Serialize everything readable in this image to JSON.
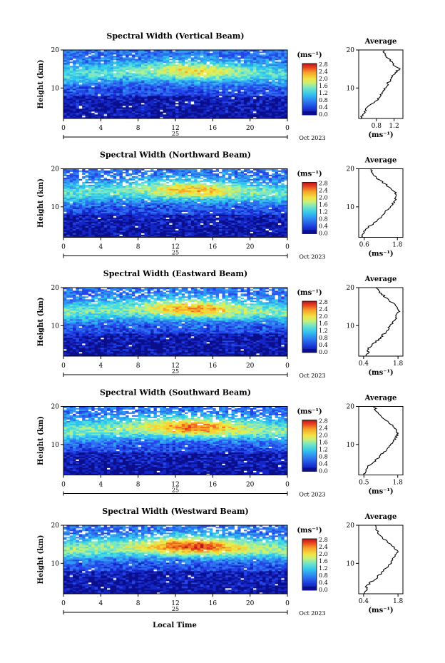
{
  "figure": {
    "xlabel": "Local Time",
    "date_label": "Oct 2023",
    "day_label": "25",
    "ylabel": "Height (km)",
    "units": "(ms⁻¹)",
    "average_title": "Average",
    "average_xunit": "(ms⁻¹)",
    "x_ticks": [
      "0",
      "4",
      "8",
      "12",
      "16",
      "20",
      "0"
    ],
    "y_ticks": [
      "20",
      "10"
    ],
    "colorbar_ticks": [
      "2.8",
      "2.4",
      "2.0",
      "1.6",
      "1.2",
      "0.8",
      "0.4",
      "0.0"
    ],
    "colorbar_colors": [
      "#0b0f8c",
      "#1426c7",
      "#2346e8",
      "#2d6ff0",
      "#2f9af2",
      "#31c1ef",
      "#46dbe0",
      "#7fe8c2",
      "#b4ef8a",
      "#e2ef52",
      "#f7d434",
      "#f7a52a",
      "#f06a22",
      "#e0321c",
      "#b8141a"
    ]
  },
  "chart_data": [
    {
      "type": "heatmap",
      "title": "Spectral Width (Vertical Beam)",
      "xlabel": "Local Time",
      "ylabel": "Height (km)",
      "xlim": [
        0,
        24
      ],
      "ylim": [
        2,
        20
      ],
      "clim": [
        0.0,
        3.0
      ],
      "colorbar_label": "(ms⁻¹)",
      "average_profile": {
        "title": "Average",
        "xlabel": "(ms⁻¹)",
        "xlim": [
          0.4,
          1.4
        ],
        "xticks": [
          "0.8",
          "1.2"
        ],
        "xtick_values": [
          0.8,
          1.2
        ],
        "height": [
          2,
          3,
          4,
          5,
          6,
          7,
          8,
          9,
          10,
          11,
          12,
          13,
          14,
          15,
          16,
          17,
          18,
          19,
          20
        ],
        "width": [
          0.45,
          0.5,
          0.55,
          0.6,
          0.72,
          0.82,
          0.9,
          0.95,
          1.0,
          1.05,
          1.1,
          1.15,
          1.22,
          1.32,
          1.2,
          1.12,
          1.05,
          1.0,
          0.95
        ]
      }
    },
    {
      "type": "heatmap",
      "title": "Spectral Width (Northward Beam)",
      "xlabel": "Local Time",
      "ylabel": "Height (km)",
      "xlim": [
        0,
        24
      ],
      "ylim": [
        2,
        20
      ],
      "clim": [
        0.0,
        3.0
      ],
      "colorbar_label": "(ms⁻¹)",
      "average_profile": {
        "title": "Average",
        "xlabel": "(ms⁻¹)",
        "xlim": [
          0.4,
          2.0
        ],
        "xticks": [
          "0.6",
          "1.8"
        ],
        "xtick_values": [
          0.6,
          1.8
        ],
        "height": [
          2,
          3,
          4,
          5,
          6,
          7,
          8,
          9,
          10,
          11,
          12,
          13,
          14,
          15,
          16,
          17,
          18,
          19,
          20
        ],
        "width": [
          0.5,
          0.55,
          0.65,
          0.8,
          1.0,
          1.15,
          1.3,
          1.42,
          1.55,
          1.65,
          1.72,
          1.78,
          1.7,
          1.55,
          1.35,
          1.15,
          1.0,
          0.9,
          0.85
        ]
      }
    },
    {
      "type": "heatmap",
      "title": "Spectral Width (Eastward Beam)",
      "xlabel": "Local Time",
      "ylabel": "Height (km)",
      "xlim": [
        0,
        24
      ],
      "ylim": [
        2,
        20
      ],
      "clim": [
        0.0,
        3.0
      ],
      "colorbar_label": "(ms⁻¹)",
      "average_profile": {
        "title": "Average",
        "xlabel": "(ms⁻¹)",
        "xlim": [
          0.2,
          2.0
        ],
        "xticks": [
          "0.4",
          "1.8"
        ],
        "xtick_values": [
          0.4,
          1.8
        ],
        "height": [
          2,
          3,
          4,
          5,
          6,
          7,
          8,
          9,
          10,
          11,
          12,
          13,
          14,
          15,
          16,
          17,
          18,
          19,
          20
        ],
        "width": [
          0.5,
          0.6,
          0.55,
          0.75,
          0.95,
          1.1,
          1.25,
          1.38,
          1.5,
          1.62,
          1.7,
          1.75,
          1.85,
          1.7,
          1.6,
          1.35,
          1.2,
          1.0,
          0.95
        ]
      }
    },
    {
      "type": "heatmap",
      "title": "Spectral Width (Southward Beam)",
      "xlabel": "Local Time",
      "ylabel": "Height (km)",
      "xlim": [
        0,
        24
      ],
      "ylim": [
        2,
        20
      ],
      "clim": [
        0.0,
        3.0
      ],
      "colorbar_label": "(ms⁻¹)",
      "average_profile": {
        "title": "Average",
        "xlabel": "(ms⁻¹)",
        "xlim": [
          0.3,
          2.0
        ],
        "xticks": [
          "0.5",
          "1.8"
        ],
        "xtick_values": [
          0.5,
          1.8
        ],
        "height": [
          2,
          3,
          4,
          5,
          6,
          7,
          8,
          9,
          10,
          11,
          12,
          13,
          14,
          15,
          16,
          17,
          18,
          19,
          20
        ],
        "width": [
          0.5,
          0.55,
          0.62,
          0.78,
          0.98,
          1.12,
          1.28,
          1.42,
          1.55,
          1.65,
          1.75,
          1.8,
          1.72,
          1.58,
          1.42,
          1.2,
          1.05,
          0.95,
          0.9
        ]
      }
    },
    {
      "type": "heatmap",
      "title": "Spectral Width (Westward Beam)",
      "xlabel": "Local Time",
      "ylabel": "Height (km)",
      "xlim": [
        0,
        24
      ],
      "ylim": [
        2,
        20
      ],
      "clim": [
        0.0,
        3.0
      ],
      "colorbar_label": "(ms⁻¹)",
      "average_profile": {
        "title": "Average",
        "xlabel": "(ms⁻¹)",
        "xlim": [
          0.2,
          2.0
        ],
        "xticks": [
          "0.4",
          "1.8"
        ],
        "xtick_values": [
          0.4,
          1.8
        ],
        "height": [
          2,
          3,
          4,
          5,
          6,
          7,
          8,
          9,
          10,
          11,
          12,
          13,
          14,
          15,
          16,
          17,
          18,
          19,
          20
        ],
        "width": [
          0.45,
          0.55,
          0.5,
          0.7,
          0.9,
          1.05,
          1.2,
          1.35,
          1.48,
          1.6,
          1.7,
          1.78,
          1.68,
          1.5,
          1.3,
          1.12,
          1.0,
          0.92,
          0.85
        ]
      }
    }
  ]
}
